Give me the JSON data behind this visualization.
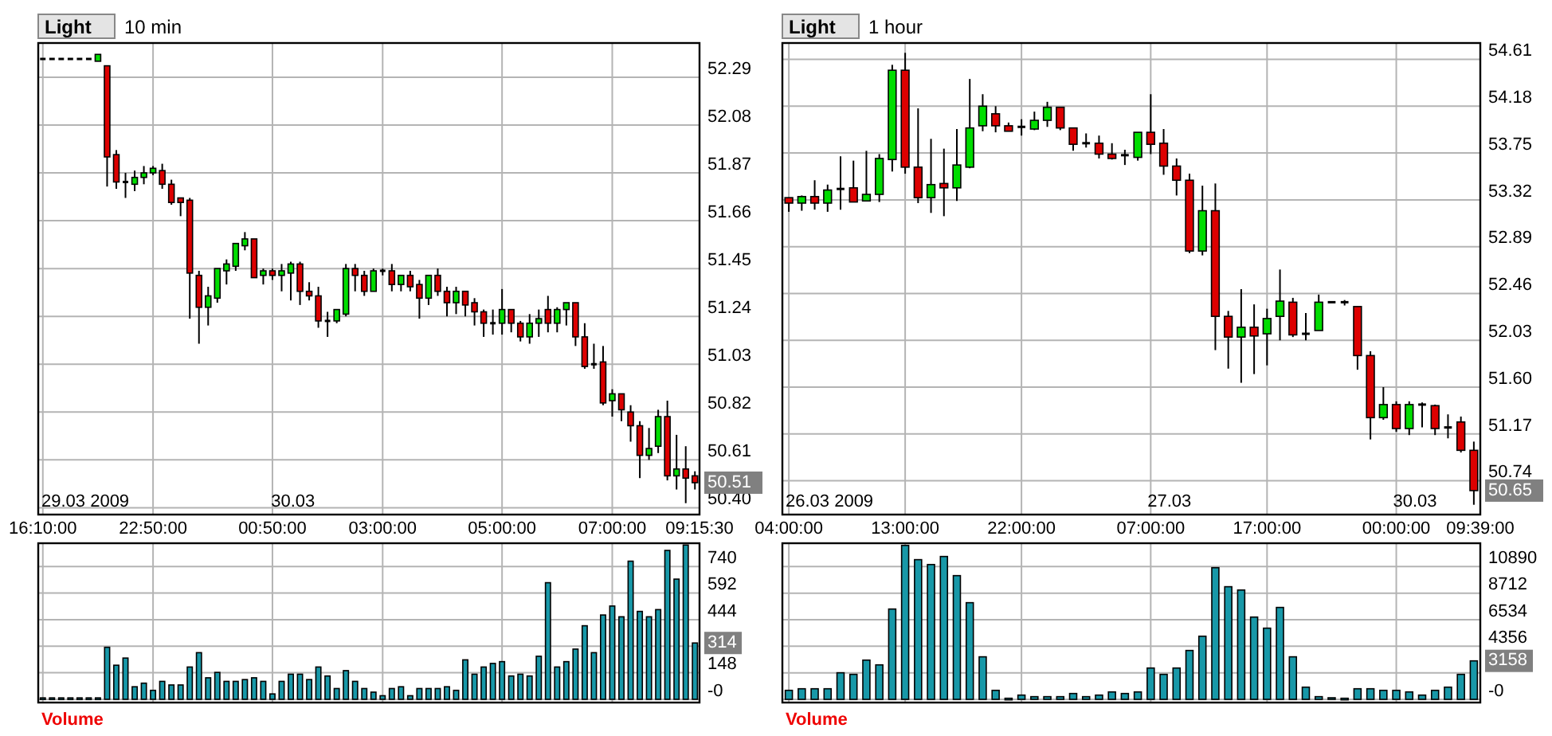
{
  "chart_data": [
    {
      "type": "candlestick",
      "title": "Light",
      "subtitle": "10 min",
      "categories": [
        "16:10:00",
        null,
        null,
        null,
        null,
        null,
        null,
        null,
        null,
        null,
        null,
        null,
        "22:50:00",
        null,
        null,
        null,
        null,
        null,
        null,
        null,
        null,
        null,
        null,
        null,
        null,
        "00:50:00",
        null,
        null,
        null,
        null,
        null,
        null,
        null,
        null,
        null,
        null,
        null,
        "03:00:00",
        null,
        null,
        null,
        null,
        null,
        null,
        null,
        null,
        null,
        null,
        null,
        null,
        "05:00:00",
        null,
        null,
        null,
        null,
        null,
        null,
        null,
        null,
        null,
        null,
        null,
        "07:00:00",
        null,
        null,
        null,
        null,
        null,
        null,
        null,
        null,
        null
      ],
      "ohlc": [
        [
          52.37,
          52.37,
          52.37,
          52.37
        ],
        [
          52.37,
          52.37,
          52.37,
          52.37
        ],
        [
          52.37,
          52.37,
          52.37,
          52.37
        ],
        [
          52.37,
          52.37,
          52.37,
          52.37
        ],
        [
          52.37,
          52.37,
          52.37,
          52.37
        ],
        [
          52.37,
          52.37,
          52.37,
          52.37
        ],
        [
          52.36,
          52.39,
          52.36,
          52.39
        ],
        [
          52.34,
          52.34,
          51.81,
          51.94
        ],
        [
          51.95,
          51.97,
          51.8,
          51.83
        ],
        [
          51.83,
          51.87,
          51.76,
          51.83
        ],
        [
          51.82,
          51.88,
          51.79,
          51.85
        ],
        [
          51.85,
          51.9,
          51.82,
          51.87
        ],
        [
          51.87,
          51.9,
          51.86,
          51.89
        ],
        [
          51.88,
          51.91,
          51.8,
          51.82
        ],
        [
          51.82,
          51.84,
          51.73,
          51.74
        ],
        [
          51.76,
          51.76,
          51.68,
          51.74
        ],
        [
          51.75,
          51.76,
          51.23,
          51.43
        ],
        [
          51.42,
          51.44,
          51.12,
          51.28
        ],
        [
          51.28,
          51.37,
          51.2,
          51.33
        ],
        [
          51.32,
          51.45,
          51.3,
          51.45
        ],
        [
          51.44,
          51.49,
          51.38,
          51.47
        ],
        [
          51.46,
          51.56,
          51.44,
          51.56
        ],
        [
          51.55,
          51.61,
          51.53,
          51.58
        ],
        [
          51.58,
          51.58,
          51.41,
          51.41
        ],
        [
          51.42,
          51.45,
          51.38,
          51.44
        ],
        [
          51.44,
          51.45,
          51.4,
          51.42
        ],
        [
          51.42,
          51.47,
          51.35,
          51.44
        ],
        [
          51.43,
          51.48,
          51.31,
          51.47
        ],
        [
          51.47,
          51.48,
          51.29,
          51.35
        ],
        [
          51.35,
          51.39,
          51.31,
          51.33
        ],
        [
          51.33,
          51.37,
          51.19,
          51.22
        ],
        [
          51.22,
          51.26,
          51.15,
          51.22
        ],
        [
          51.22,
          51.27,
          51.21,
          51.27
        ],
        [
          51.25,
          51.47,
          51.24,
          51.45
        ],
        [
          51.45,
          51.47,
          51.35,
          51.42
        ],
        [
          51.42,
          51.44,
          51.33,
          51.35
        ],
        [
          51.35,
          51.45,
          51.35,
          51.44
        ],
        [
          51.44,
          51.45,
          51.42,
          51.44
        ],
        [
          51.44,
          51.47,
          51.35,
          51.38
        ],
        [
          51.38,
          51.42,
          51.35,
          51.42
        ],
        [
          51.42,
          51.44,
          51.35,
          51.37
        ],
        [
          51.38,
          51.4,
          51.23,
          51.32
        ],
        [
          51.32,
          51.42,
          51.29,
          51.42
        ],
        [
          51.42,
          51.45,
          51.33,
          51.35
        ],
        [
          51.35,
          51.37,
          51.24,
          51.3
        ],
        [
          51.3,
          51.37,
          51.25,
          51.35
        ],
        [
          51.35,
          51.35,
          51.24,
          51.29
        ],
        [
          51.3,
          51.32,
          51.2,
          51.26
        ],
        [
          51.26,
          51.27,
          51.15,
          51.21
        ],
        [
          51.21,
          51.27,
          51.16,
          51.21
        ],
        [
          51.21,
          51.36,
          51.16,
          51.27
        ],
        [
          51.27,
          51.27,
          51.17,
          51.21
        ],
        [
          51.21,
          51.22,
          51.13,
          51.15
        ],
        [
          51.15,
          51.25,
          51.12,
          51.21
        ],
        [
          51.21,
          51.27,
          51.15,
          51.23
        ],
        [
          51.27,
          51.33,
          51.17,
          51.21
        ],
        [
          51.21,
          51.28,
          51.17,
          51.27
        ],
        [
          51.27,
          51.3,
          51.2,
          51.3
        ],
        [
          51.3,
          51.3,
          51.11,
          51.15
        ],
        [
          51.15,
          51.21,
          51.01,
          51.02
        ],
        [
          51.03,
          51.12,
          51.01,
          51.03
        ],
        [
          51.04,
          51.11,
          50.85,
          50.86
        ],
        [
          50.87,
          50.92,
          50.8,
          50.9
        ],
        [
          50.9,
          50.9,
          50.78,
          50.83
        ],
        [
          50.82,
          50.85,
          50.69,
          50.76
        ],
        [
          50.76,
          50.78,
          50.53,
          50.63
        ],
        [
          50.63,
          50.75,
          50.61,
          50.66
        ],
        [
          50.67,
          50.83,
          50.64,
          50.8
        ],
        [
          50.8,
          50.87,
          50.52,
          50.54
        ],
        [
          50.54,
          50.72,
          50.48,
          50.57
        ],
        [
          50.57,
          50.67,
          50.42,
          50.53
        ],
        [
          50.54,
          50.56,
          50.48,
          50.51
        ]
      ],
      "colors": [
        "#000000",
        "#000000",
        "#000000",
        "#000000",
        "#000000",
        "#000000",
        "#00dd00",
        "#dd0000",
        "#dd0000",
        "#000000",
        "#00dd00",
        "#00dd00",
        "#00dd00",
        "#dd0000",
        "#dd0000",
        "#dd0000",
        "#dd0000",
        "#dd0000",
        "#00dd00",
        "#00dd00",
        "#00dd00",
        "#00dd00",
        "#00dd00",
        "#dd0000",
        "#00dd00",
        "#dd0000",
        "#00dd00",
        "#00dd00",
        "#dd0000",
        "#dd0000",
        "#dd0000",
        "#000000",
        "#00dd00",
        "#00dd00",
        "#dd0000",
        "#dd0000",
        "#00dd00",
        "#000000",
        "#dd0000",
        "#00dd00",
        "#dd0000",
        "#dd0000",
        "#00dd00",
        "#dd0000",
        "#dd0000",
        "#00dd00",
        "#dd0000",
        "#dd0000",
        "#dd0000",
        "#000000",
        "#00dd00",
        "#dd0000",
        "#dd0000",
        "#00dd00",
        "#00dd00",
        "#dd0000",
        "#00dd00",
        "#00dd00",
        "#dd0000",
        "#dd0000",
        "#000000",
        "#dd0000",
        "#00dd00",
        "#dd0000",
        "#dd0000",
        "#dd0000",
        "#00dd00",
        "#00dd00",
        "#dd0000",
        "#00dd00",
        "#dd0000",
        "#dd0000"
      ],
      "ylim": [
        50.37,
        52.44
      ],
      "yticks": [
        52.29,
        52.08,
        51.87,
        51.66,
        51.45,
        51.24,
        51.03,
        50.82,
        50.61,
        {
          "value": 50.4,
          "label": "50.40"
        }
      ],
      "grid": true,
      "annotations": [
        "29.03 2009",
        "30.03",
        "09:15:30",
        "50.51"
      ]
    },
    {
      "type": "bar",
      "title": "Volume",
      "categories": [
        null,
        null,
        null,
        null,
        null,
        null,
        null,
        null,
        null,
        null,
        null,
        null,
        null,
        null,
        null,
        null,
        null,
        null,
        null,
        null,
        null,
        null,
        null,
        null,
        null,
        null,
        null,
        null,
        null,
        null,
        null,
        null,
        null,
        null,
        null,
        null,
        null,
        null,
        null,
        null,
        null,
        null,
        null,
        null,
        null,
        null,
        null,
        null,
        null,
        null,
        null,
        null,
        null,
        null,
        null,
        null,
        null,
        null,
        null,
        null,
        null,
        null,
        null,
        null,
        null,
        null,
        null,
        null,
        null,
        null,
        null,
        null
      ],
      "values": [
        8,
        8,
        8,
        8,
        8,
        8,
        8,
        290,
        190,
        230,
        70,
        90,
        50,
        100,
        80,
        80,
        180,
        260,
        120,
        150,
        100,
        100,
        110,
        120,
        100,
        30,
        100,
        140,
        140,
        110,
        180,
        130,
        60,
        160,
        100,
        60,
        40,
        20,
        60,
        70,
        20,
        60,
        60,
        60,
        70,
        50,
        220,
        140,
        180,
        200,
        210,
        130,
        140,
        130,
        240,
        650,
        180,
        210,
        280,
        410,
        260,
        470,
        520,
        460,
        770,
        490,
        460,
        500,
        830,
        670,
        860,
        314
      ],
      "color": "#1898a8",
      "ylim": [
        -18,
        870
      ],
      "yticks": [
        {
          "value": 0,
          "label": "-0"
        },
        148,
        {
          "value": 296,
          "label": null
        },
        444,
        592,
        740
      ],
      "grid": true,
      "tick_labels": "y",
      "annotations": [
        "314"
      ]
    },
    {
      "type": "candlestick",
      "title": "Light",
      "subtitle": "1 hour",
      "categories": [
        "04:00:00",
        null,
        null,
        null,
        null,
        null,
        null,
        null,
        null,
        "13:00:00",
        null,
        null,
        null,
        null,
        null,
        null,
        null,
        null,
        "22:00:00",
        null,
        null,
        null,
        null,
        null,
        null,
        null,
        null,
        null,
        "07:00:00",
        null,
        null,
        null,
        null,
        null,
        null,
        null,
        null,
        "17:00:00",
        null,
        null,
        null,
        null,
        null,
        null,
        null,
        null,
        null,
        "00:00:00",
        null,
        null,
        null,
        null,
        null,
        null
      ],
      "ohlc": [
        [
          53.34,
          53.34,
          53.21,
          53.29
        ],
        [
          53.29,
          53.36,
          53.22,
          53.35
        ],
        [
          53.35,
          53.5,
          53.23,
          53.29
        ],
        [
          53.29,
          53.46,
          53.21,
          53.41
        ],
        [
          53.42,
          53.72,
          53.23,
          53.42
        ],
        [
          53.43,
          53.68,
          53.3,
          53.3
        ],
        [
          53.31,
          53.77,
          53.31,
          53.37
        ],
        [
          53.37,
          53.74,
          53.3,
          53.7
        ],
        [
          53.69,
          54.56,
          53.58,
          54.51
        ],
        [
          54.51,
          54.67,
          53.56,
          53.62
        ],
        [
          53.62,
          54.16,
          53.29,
          53.34
        ],
        [
          53.34,
          53.88,
          53.2,
          53.46
        ],
        [
          53.47,
          53.79,
          53.17,
          53.43
        ],
        [
          53.43,
          53.97,
          53.31,
          53.64
        ],
        [
          53.62,
          54.43,
          53.61,
          53.98
        ],
        [
          54.0,
          54.29,
          53.95,
          54.18
        ],
        [
          54.11,
          54.18,
          53.94,
          54.0
        ],
        [
          54.0,
          54.03,
          53.95,
          53.95
        ],
        [
          53.99,
          54.06,
          53.91,
          53.99
        ],
        [
          53.97,
          54.13,
          53.96,
          54.05
        ],
        [
          54.05,
          54.22,
          53.99,
          54.17
        ],
        [
          54.17,
          54.17,
          53.96,
          53.98
        ],
        [
          53.98,
          53.98,
          53.77,
          53.83
        ],
        [
          53.84,
          53.93,
          53.8,
          53.84
        ],
        [
          53.84,
          53.91,
          53.7,
          53.74
        ],
        [
          53.74,
          53.84,
          53.69,
          53.7
        ],
        [
          53.73,
          53.78,
          53.64,
          53.73
        ],
        [
          53.71,
          53.94,
          53.68,
          53.94
        ],
        [
          53.94,
          54.29,
          53.74,
          53.83
        ],
        [
          53.84,
          53.97,
          53.55,
          53.63
        ],
        [
          53.63,
          53.7,
          53.36,
          53.5
        ],
        [
          53.5,
          53.56,
          52.83,
          52.85
        ],
        [
          52.85,
          53.45,
          52.81,
          53.22
        ],
        [
          53.22,
          53.47,
          51.94,
          52.25
        ],
        [
          52.25,
          52.3,
          51.77,
          52.06
        ],
        [
          52.06,
          52.5,
          51.64,
          52.15
        ],
        [
          52.15,
          52.36,
          51.72,
          52.07
        ],
        [
          52.09,
          52.32,
          51.8,
          52.23
        ],
        [
          52.25,
          52.68,
          52.03,
          52.39
        ],
        [
          52.38,
          52.42,
          52.06,
          52.08
        ],
        [
          52.09,
          52.28,
          52.03,
          52.09
        ],
        [
          52.12,
          52.45,
          52.12,
          52.38
        ],
        [
          52.38,
          52.38,
          52.38,
          52.38
        ],
        [
          52.38,
          52.4,
          52.35,
          52.38
        ],
        [
          52.34,
          52.34,
          51.76,
          51.89
        ],
        [
          51.89,
          51.93,
          51.12,
          51.32
        ],
        [
          51.32,
          51.6,
          51.3,
          51.44
        ],
        [
          51.44,
          51.47,
          51.19,
          51.22
        ],
        [
          51.22,
          51.47,
          51.16,
          51.44
        ],
        [
          51.44,
          51.46,
          51.23,
          51.44
        ],
        [
          51.43,
          51.44,
          51.16,
          51.22
        ],
        [
          51.23,
          51.35,
          51.13,
          51.23
        ],
        [
          51.28,
          51.33,
          51.0,
          51.02
        ],
        [
          51.02,
          51.1,
          50.52,
          50.65
        ]
      ],
      "colors": [
        "#dd0000",
        "#00dd00",
        "#dd0000",
        "#00dd00",
        "#000000",
        "#dd0000",
        "#00dd00",
        "#00dd00",
        "#00dd00",
        "#dd0000",
        "#dd0000",
        "#00dd00",
        "#dd0000",
        "#00dd00",
        "#00dd00",
        "#00dd00",
        "#dd0000",
        "#dd0000",
        "#000000",
        "#00dd00",
        "#00dd00",
        "#dd0000",
        "#dd0000",
        "#000000",
        "#dd0000",
        "#dd0000",
        "#000000",
        "#00dd00",
        "#dd0000",
        "#dd0000",
        "#dd0000",
        "#dd0000",
        "#00dd00",
        "#dd0000",
        "#dd0000",
        "#00dd00",
        "#dd0000",
        "#00dd00",
        "#00dd00",
        "#dd0000",
        "#000000",
        "#00dd00",
        "#000000",
        "#000000",
        "#dd0000",
        "#dd0000",
        "#00dd00",
        "#dd0000",
        "#00dd00",
        "#000000",
        "#dd0000",
        "#000000",
        "#dd0000",
        "#dd0000"
      ],
      "ylim": [
        50.43,
        54.76
      ],
      "yticks": [
        54.61,
        54.18,
        53.75,
        53.32,
        52.89,
        52.46,
        52.03,
        {
          "value": 51.6,
          "label": "51.60"
        },
        51.17,
        50.74
      ],
      "grid": true,
      "annotations": [
        "26.03 2009",
        "27.03",
        "30.03",
        "09:39:00",
        "50.65"
      ]
    },
    {
      "type": "bar",
      "title": "Volume",
      "categories": [
        null,
        null,
        null,
        null,
        null,
        null,
        null,
        null,
        null,
        null,
        null,
        null,
        null,
        null,
        null,
        null,
        null,
        null,
        null,
        null,
        null,
        null,
        null,
        null,
        null,
        null,
        null,
        null,
        null,
        null,
        null,
        null,
        null,
        null,
        null,
        null,
        null,
        null,
        null,
        null,
        null,
        null,
        null,
        null,
        null,
        null,
        null,
        null,
        null,
        null,
        null,
        null,
        null,
        null
      ],
      "values": [
        740,
        870,
        870,
        870,
        2180,
        2050,
        3220,
        2830,
        7410,
        12630,
        11460,
        11060,
        11720,
        10150,
        7930,
        3490,
        740,
        90,
        350,
        220,
        220,
        220,
        480,
        220,
        350,
        610,
        480,
        610,
        2570,
        2050,
        2570,
        4010,
        5180,
        10800,
        9240,
        8970,
        6750,
        5840,
        7540,
        3490,
        1000,
        220,
        0,
        90,
        870,
        870,
        740,
        740,
        610,
        350,
        740,
        1000,
        2050,
        3158
      ],
      "color": "#1898a8",
      "ylim": [
        -261,
        12807
      ],
      "yticks": [
        {
          "value": 0,
          "label": "-0"
        },
        {
          "value": 2178,
          "label": null
        },
        4356,
        6534,
        8712,
        10890
      ],
      "grid": true,
      "tick_labels": "y",
      "annotations": [
        "3158"
      ]
    }
  ]
}
